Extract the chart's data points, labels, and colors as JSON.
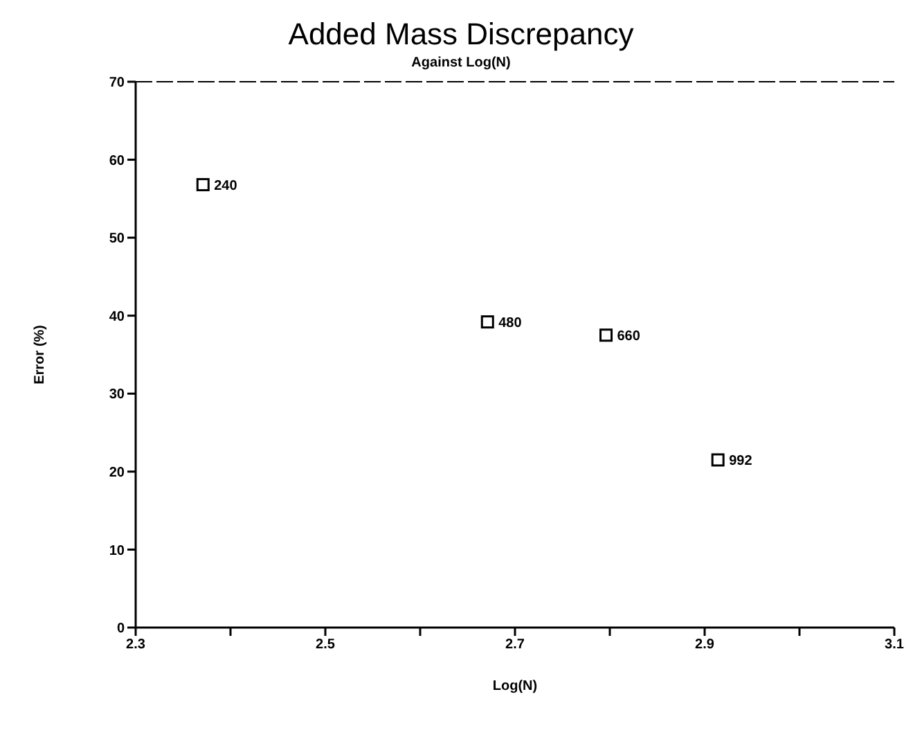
{
  "chart_data": {
    "type": "scatter",
    "title": "Added Mass Discrepancy",
    "subtitle": "Against Log(N)",
    "xlabel": "Log(N)",
    "ylabel": "Error (%)",
    "x": [
      2.371,
      2.671,
      2.796,
      2.914
    ],
    "series": [
      {
        "color": "#000000",
        "values": [
          56.8,
          39.2,
          37.5,
          21.5
        ]
      }
    ],
    "annotations": [
      {
        "text": "240",
        "x": 2.371,
        "y": 56.8
      },
      {
        "text": "480",
        "x": 2.671,
        "y": 39.2
      },
      {
        "text": "660",
        "x": 2.796,
        "y": 37.5
      },
      {
        "text": "992",
        "x": 2.914,
        "y": 21.5
      }
    ],
    "xlim": [
      2.3,
      3.1
    ],
    "xticks": [
      2.3,
      {
        "value": 2.4,
        "label": null
      },
      2.5,
      {
        "value": 2.6,
        "label": null
      },
      2.7,
      {
        "value": 2.8,
        "label": null
      },
      2.9,
      {
        "value": 3.0,
        "label": null
      },
      3.1
    ],
    "ylim": [
      0,
      70
    ],
    "yticks": [
      0,
      10,
      20,
      30,
      40,
      50,
      60,
      70
    ],
    "marker": "square",
    "grid": false
  }
}
